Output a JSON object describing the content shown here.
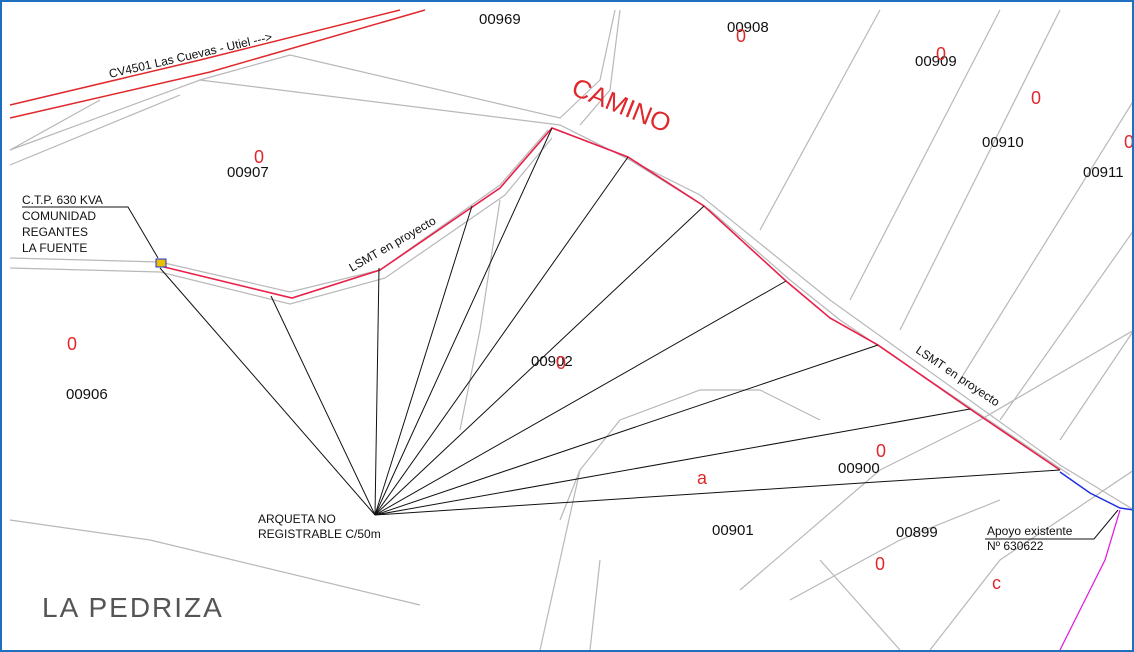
{
  "road": "CV4501  Las Cuevas - Utiel --->",
  "street": "CAMINO",
  "line_labels": [
    "LSMT  en  proyecto",
    "LSMT  en  proyecto"
  ],
  "transformer": [
    "C.T.P. 630 KVA",
    "COMUNIDAD",
    "REGANTES",
    "LA FUENTE"
  ],
  "junction": [
    "ARQUETA NO",
    "REGISTRABLE C/50m"
  ],
  "support": [
    "Apoyo existente",
    "Nº 630622"
  ],
  "area": "LA PEDRIZA",
  "parcels": [
    "00969",
    "00908",
    "00909",
    "00910",
    "00911",
    "00907",
    "00906",
    "00902",
    "00900",
    "00901",
    "00899"
  ],
  "lot_marks": [
    "0",
    "0",
    "0",
    "0",
    "0",
    "0",
    "0",
    "0",
    "0",
    "a",
    "c"
  ]
}
